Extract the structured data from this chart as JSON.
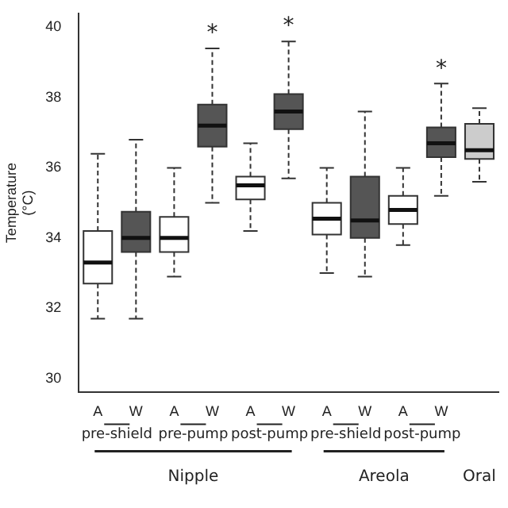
{
  "chart_data": {
    "type": "box",
    "ylabel": "Temperature (°C)",
    "categories": [
      "A",
      "W",
      "A",
      "W",
      "A",
      "W",
      "A",
      "W",
      "A",
      "W",
      null
    ],
    "colors": [
      "#ffffff",
      "#555555",
      "#ffffff",
      "#555555",
      "#ffffff",
      "#555555",
      "#ffffff",
      "#555555",
      "#ffffff",
      "#555555",
      "#cccccc"
    ],
    "boxes": [
      {
        "low": 31.7,
        "q1": 32.7,
        "median": 33.3,
        "q3": 34.2,
        "high": 36.4
      },
      {
        "low": 31.7,
        "q1": 33.6,
        "median": 34.0,
        "q3": 34.75,
        "high": 36.8
      },
      {
        "low": 32.9,
        "q1": 33.6,
        "median": 34.0,
        "q3": 34.6,
        "high": 36.0
      },
      {
        "low": 35.0,
        "q1": 36.6,
        "median": 37.2,
        "q3": 37.8,
        "high": 39.4
      },
      {
        "low": 34.2,
        "q1": 35.1,
        "median": 35.5,
        "q3": 35.75,
        "high": 36.7
      },
      {
        "low": 35.7,
        "q1": 37.1,
        "median": 37.6,
        "q3": 38.1,
        "high": 39.6
      },
      {
        "low": 33.0,
        "q1": 34.1,
        "median": 34.55,
        "q3": 35.0,
        "high": 36.0
      },
      {
        "low": 32.9,
        "q1": 34.0,
        "median": 34.5,
        "q3": 35.75,
        "high": 37.6
      },
      {
        "low": 33.8,
        "q1": 34.4,
        "median": 34.8,
        "q3": 35.2,
        "high": 36.0
      },
      {
        "low": 35.2,
        "q1": 36.3,
        "median": 36.7,
        "q3": 37.15,
        "high": 38.4
      },
      {
        "low": 35.6,
        "q1": 36.25,
        "median": 36.5,
        "q3": 37.25,
        "high": 37.7
      }
    ],
    "ylim": [
      29.6,
      40.4
    ],
    "yticks": [
      30,
      32,
      34,
      36,
      38,
      40
    ],
    "grid": false,
    "legend": false,
    "annotations": [
      "*",
      "*",
      "*",
      "pre-shield",
      "pre-pump",
      "post-pump",
      "pre-shield",
      "post-pump",
      "Nipple",
      "Areola",
      "Oral"
    ]
  }
}
